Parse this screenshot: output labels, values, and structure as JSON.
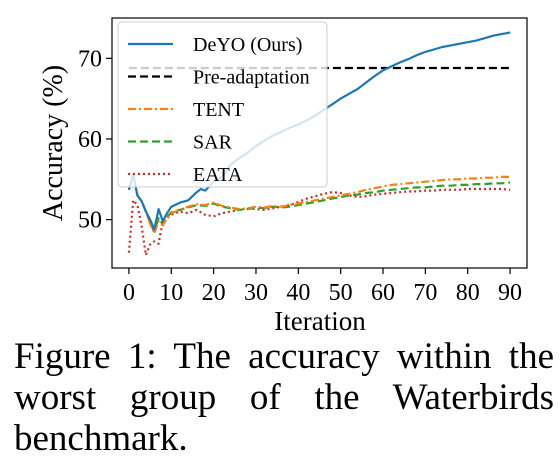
{
  "caption": "Figure 1: The accuracy within the worst group of the Waterbirds benchmark.",
  "chart_data": {
    "type": "line",
    "xlabel": "Iteration",
    "ylabel": "Accuracy (%)",
    "xlim": [
      -4,
      94
    ],
    "ylim": [
      44,
      75
    ],
    "xticks": [
      0,
      10,
      20,
      30,
      40,
      50,
      60,
      70,
      80,
      90
    ],
    "yticks": [
      50,
      60,
      70
    ],
    "grid": false,
    "legend_position": "top-left",
    "series": [
      {
        "name": "DeYO (Ours)",
        "color": "#1f77b4",
        "style": "solid",
        "x": [
          0,
          1,
          2,
          3,
          4,
          5,
          6,
          7,
          8,
          9,
          10,
          12,
          14,
          16,
          17,
          18,
          20,
          22,
          24,
          26,
          28,
          30,
          32,
          34,
          36,
          38,
          40,
          42,
          44,
          46,
          48,
          50,
          52,
          54,
          56,
          58,
          60,
          62,
          64,
          66,
          68,
          70,
          72,
          74,
          76,
          78,
          80,
          82,
          84,
          86,
          88,
          90
        ],
        "y": [
          53.7,
          55.6,
          53.0,
          52.3,
          51.0,
          50.0,
          48.8,
          51.3,
          49.8,
          50.8,
          51.6,
          52.1,
          52.4,
          53.4,
          53.8,
          53.6,
          54.7,
          55.3,
          56.8,
          57.6,
          58.3,
          59.1,
          59.8,
          60.4,
          60.9,
          61.4,
          61.8,
          62.3,
          62.9,
          63.6,
          64.3,
          65.0,
          65.6,
          66.2,
          67.0,
          67.8,
          68.5,
          69.0,
          69.5,
          69.9,
          70.4,
          70.8,
          71.1,
          71.4,
          71.6,
          71.8,
          72.0,
          72.2,
          72.5,
          72.8,
          73.0,
          73.2
        ]
      },
      {
        "name": "Pre-adaptation",
        "color": "#000000",
        "style": "dashed",
        "x": [
          0,
          90
        ],
        "y": [
          68.8,
          68.8
        ]
      },
      {
        "name": "TENT",
        "color": "#ff7f0e",
        "style": "dashdot",
        "x": [
          0,
          1,
          2,
          3,
          4,
          5,
          6,
          7,
          8,
          9,
          10,
          12,
          14,
          16,
          18,
          20,
          22,
          24,
          26,
          28,
          30,
          32,
          34,
          36,
          38,
          40,
          42,
          44,
          46,
          48,
          50,
          52,
          54,
          56,
          58,
          60,
          62,
          64,
          66,
          68,
          70,
          72,
          74,
          76,
          78,
          80,
          82,
          84,
          86,
          88,
          90
        ],
        "y": [
          53.7,
          55.6,
          53.0,
          52.3,
          51.0,
          49.5,
          48.3,
          49.8,
          49.3,
          50.2,
          50.8,
          51.2,
          51.6,
          51.9,
          51.8,
          52.1,
          51.7,
          51.5,
          51.3,
          51.4,
          51.6,
          51.5,
          51.7,
          51.6,
          51.8,
          52.0,
          52.2,
          52.4,
          52.6,
          52.8,
          53.0,
          53.2,
          53.4,
          53.7,
          53.9,
          54.1,
          54.3,
          54.4,
          54.5,
          54.6,
          54.7,
          54.8,
          54.9,
          55.0,
          55.0,
          55.1,
          55.1,
          55.2,
          55.2,
          55.3,
          55.3
        ]
      },
      {
        "name": "SAR",
        "color": "#2ca02c",
        "style": "dashed",
        "x": [
          0,
          1,
          2,
          3,
          4,
          5,
          6,
          7,
          8,
          9,
          10,
          12,
          14,
          16,
          18,
          20,
          22,
          24,
          26,
          28,
          30,
          32,
          34,
          36,
          38,
          40,
          42,
          44,
          46,
          48,
          50,
          52,
          54,
          56,
          58,
          60,
          62,
          64,
          66,
          68,
          70,
          72,
          74,
          76,
          78,
          80,
          82,
          84,
          86,
          88,
          90
        ],
        "y": [
          53.7,
          55.6,
          53.0,
          52.3,
          51.0,
          49.6,
          48.5,
          50.2,
          49.4,
          50.3,
          50.9,
          51.2,
          51.5,
          51.8,
          51.7,
          52.0,
          51.6,
          51.4,
          51.2,
          51.3,
          51.5,
          51.4,
          51.6,
          51.5,
          51.6,
          51.8,
          52.0,
          52.2,
          52.4,
          52.6,
          52.8,
          53.0,
          53.1,
          53.3,
          53.4,
          53.6,
          53.7,
          53.8,
          53.9,
          54.0,
          54.0,
          54.1,
          54.2,
          54.2,
          54.3,
          54.3,
          54.4,
          54.4,
          54.5,
          54.5,
          54.6
        ]
      },
      {
        "name": "EATA",
        "color": "#d62728",
        "style": "dotted",
        "x": [
          0,
          1,
          2,
          3,
          4,
          5,
          6,
          7,
          8,
          9,
          10,
          12,
          14,
          16,
          18,
          20,
          22,
          24,
          26,
          28,
          30,
          32,
          34,
          36,
          38,
          40,
          42,
          44,
          46,
          48,
          50,
          52,
          54,
          56,
          58,
          60,
          62,
          64,
          66,
          68,
          70,
          72,
          74,
          76,
          78,
          80,
          82,
          84,
          86,
          88,
          90
        ],
        "y": [
          45.9,
          52.4,
          51.8,
          49.2,
          45.6,
          46.9,
          47.3,
          47.0,
          49.8,
          50.2,
          50.6,
          51.0,
          50.8,
          51.2,
          50.6,
          50.4,
          50.8,
          51.0,
          51.2,
          51.4,
          51.3,
          51.2,
          51.4,
          51.6,
          51.8,
          52.2,
          52.6,
          52.9,
          53.2,
          53.4,
          53.3,
          53.0,
          52.8,
          52.9,
          53.1,
          53.2,
          53.3,
          53.4,
          53.5,
          53.5,
          53.6,
          53.6,
          53.7,
          53.7,
          53.7,
          53.8,
          53.8,
          53.8,
          53.8,
          53.8,
          53.7
        ]
      }
    ]
  }
}
